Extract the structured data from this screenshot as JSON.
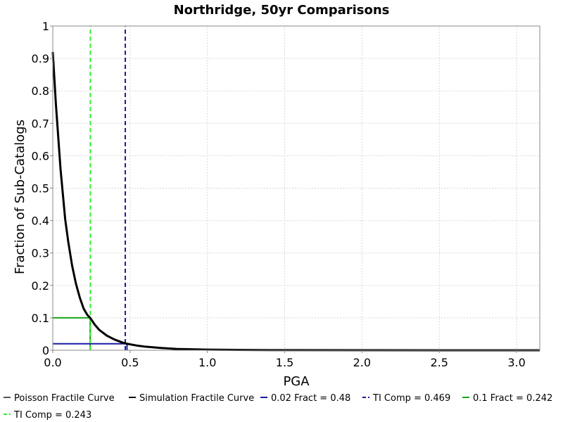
{
  "chart_data": {
    "type": "line",
    "title": "Northridge, 50yr Comparisons",
    "xlabel": "PGA",
    "ylabel": "Fraction of Sub-Catalogs",
    "xlim": [
      0,
      3.15
    ],
    "ylim": [
      0,
      1
    ],
    "xticks": [
      "0.0",
      "0.5",
      "1.0",
      "1.5",
      "2.0",
      "2.5",
      "3.0"
    ],
    "xtick_values": [
      0,
      0.5,
      1.0,
      1.5,
      2.0,
      2.5,
      3.0
    ],
    "yticks": [
      "0",
      "0.1",
      "0.2",
      "0.3",
      "0.4",
      "0.5",
      "0.6",
      "0.7",
      "0.8",
      "0.9",
      "1"
    ],
    "ytick_values": [
      0,
      0.1,
      0.2,
      0.3,
      0.4,
      0.5,
      0.6,
      0.7,
      0.8,
      0.9,
      1
    ],
    "grid": true,
    "legend_position": "bottom",
    "series": [
      {
        "name": "Poisson Fractile Curve",
        "color": "#555555",
        "style": "solid",
        "x": [],
        "y": []
      },
      {
        "name": "Simulation Fractile Curve",
        "color": "#000000",
        "style": "solid",
        "x": [
          0.0,
          0.02,
          0.05,
          0.08,
          0.1,
          0.125,
          0.15,
          0.175,
          0.2,
          0.225,
          0.242,
          0.27,
          0.3,
          0.35,
          0.4,
          0.45,
          0.48,
          0.55,
          0.6,
          0.7,
          0.8,
          0.9,
          1.0,
          1.2,
          1.5,
          2.0,
          2.5,
          3.0,
          3.15
        ],
        "y": [
          0.92,
          0.76,
          0.56,
          0.405,
          0.335,
          0.261,
          0.205,
          0.162,
          0.128,
          0.108,
          0.1,
          0.08,
          0.063,
          0.045,
          0.033,
          0.024,
          0.02,
          0.014,
          0.011,
          0.007,
          0.004,
          0.003,
          0.002,
          0.001,
          0.0005,
          0.0002,
          0.0001,
          0.0001,
          0.0001
        ]
      },
      {
        "name": "0.02 Fract = 0.48",
        "color": "#1a1aa6",
        "style": "solid",
        "x": [
          0.0,
          0.48,
          0.48
        ],
        "y": [
          0.02,
          0.02,
          0.0
        ]
      },
      {
        "name": "TI Comp = 0.469",
        "color": "#1a1aa6",
        "style": "dashed",
        "x": [
          0.469,
          0.469
        ],
        "y": [
          0.0,
          1.0
        ]
      },
      {
        "name": "0.1 Fract = 0.242",
        "color": "#1aa61a",
        "style": "solid",
        "x": [
          0.0,
          0.242,
          0.242
        ],
        "y": [
          0.1,
          0.1,
          0.0
        ]
      },
      {
        "name": "TI Comp = 0.243",
        "color": "#33ee33",
        "style": "dashed",
        "x": [
          0.243,
          0.243
        ],
        "y": [
          0.0,
          1.0
        ]
      }
    ]
  }
}
